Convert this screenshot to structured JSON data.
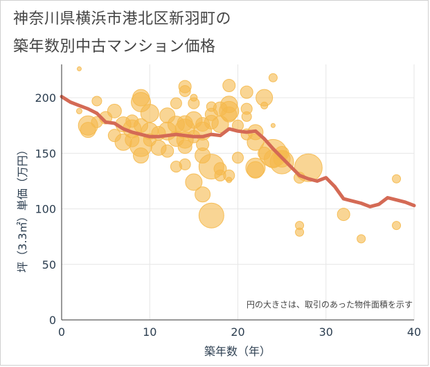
{
  "title": {
    "line1": "神奈川県横浜市港北区新羽町の",
    "line2": "築年数別中古マンション価格"
  },
  "colors": {
    "line": "#d46a55",
    "bubble": "#f5b94d",
    "axis_text": "#2c3e50",
    "grid": "#e6e6e6"
  },
  "chart_data": {
    "type": "scatter",
    "xlabel": "築年数（年）",
    "ylabel": "坪（3.3㎡）単価（万円）",
    "annotation": "円の大きさは、取引のあった物件面積を示す",
    "xlim": [
      0,
      40
    ],
    "ylim": [
      0,
      230
    ],
    "xticks": [
      "0",
      "10",
      "20",
      "30",
      "40"
    ],
    "yticks": [
      "0",
      "50",
      "100",
      "150",
      "200"
    ],
    "grid": true,
    "series": [
      {
        "type": "line",
        "points": [
          [
            0,
            201
          ],
          [
            1,
            196
          ],
          [
            2,
            193
          ],
          [
            3,
            190
          ],
          [
            4,
            186
          ],
          [
            5,
            178
          ],
          [
            6,
            177
          ],
          [
            7,
            172
          ],
          [
            8,
            169
          ],
          [
            9,
            167
          ],
          [
            10,
            165
          ],
          [
            11,
            165
          ],
          [
            12,
            166
          ],
          [
            13,
            167
          ],
          [
            14,
            166
          ],
          [
            15,
            165
          ],
          [
            16,
            165
          ],
          [
            17,
            167
          ],
          [
            18,
            166
          ],
          [
            19,
            172
          ],
          [
            20,
            170
          ],
          [
            21,
            169
          ],
          [
            22,
            170
          ],
          [
            23,
            163
          ],
          [
            24,
            154
          ],
          [
            25,
            146
          ],
          [
            26,
            138
          ],
          [
            27,
            130
          ],
          [
            28,
            127
          ],
          [
            29,
            125
          ],
          [
            30,
            128
          ],
          [
            31,
            120
          ],
          [
            32,
            109
          ],
          [
            33,
            107
          ],
          [
            34,
            105
          ],
          [
            35,
            102
          ],
          [
            36,
            104
          ],
          [
            37,
            110
          ],
          [
            38,
            108
          ],
          [
            39,
            106
          ],
          [
            40,
            103
          ]
        ]
      },
      {
        "type": "bubble",
        "points": [
          [
            2,
            226,
            3
          ],
          [
            2,
            188,
            4
          ],
          [
            3,
            175,
            14
          ],
          [
            3,
            171,
            11
          ],
          [
            4,
            197,
            7
          ],
          [
            4,
            178,
            8
          ],
          [
            5,
            182,
            9
          ],
          [
            6,
            188,
            10
          ],
          [
            6,
            166,
            9
          ],
          [
            7,
            176,
            11
          ],
          [
            7,
            160,
            12
          ],
          [
            8,
            179,
            9
          ],
          [
            8,
            172,
            13
          ],
          [
            8,
            162,
            10
          ],
          [
            9,
            200,
            12
          ],
          [
            9,
            196,
            14
          ],
          [
            9,
            175,
            10
          ],
          [
            9,
            157,
            16
          ],
          [
            9,
            148,
            11
          ],
          [
            10,
            186,
            13
          ],
          [
            10,
            170,
            12
          ],
          [
            10,
            162,
            9
          ],
          [
            11,
            155,
            11
          ],
          [
            11,
            168,
            10
          ],
          [
            12,
            184,
            11
          ],
          [
            12,
            170,
            13
          ],
          [
            12,
            152,
            9
          ],
          [
            13,
            195,
            8
          ],
          [
            13,
            176,
            12
          ],
          [
            13,
            163,
            11
          ],
          [
            13,
            138,
            8
          ],
          [
            14,
            210,
            9
          ],
          [
            14,
            206,
            8
          ],
          [
            14,
            177,
            11
          ],
          [
            14,
            172,
            14
          ],
          [
            14,
            162,
            12
          ],
          [
            14,
            156,
            10
          ],
          [
            14,
            140,
            8
          ],
          [
            15,
            200,
            5
          ],
          [
            15,
            195,
            8
          ],
          [
            15,
            180,
            12
          ],
          [
            15,
            165,
            9
          ],
          [
            15,
            124,
            12
          ],
          [
            16,
            176,
            10
          ],
          [
            16,
            170,
            13
          ],
          [
            16,
            158,
            9
          ],
          [
            16,
            148,
            11
          ],
          [
            16,
            113,
            11
          ],
          [
            17,
            192,
            7
          ],
          [
            17,
            185,
            9
          ],
          [
            17,
            178,
            10
          ],
          [
            17,
            138,
            18
          ],
          [
            17,
            94,
            18
          ],
          [
            18,
            190,
            10
          ],
          [
            18,
            176,
            12
          ],
          [
            18,
            136,
            9
          ],
          [
            18,
            130,
            8
          ],
          [
            19,
            211,
            9
          ],
          [
            19,
            194,
            12
          ],
          [
            19,
            188,
            14
          ],
          [
            19,
            185,
            11
          ],
          [
            19,
            130,
            8
          ],
          [
            19,
            126,
            4
          ],
          [
            20,
            175,
            8
          ],
          [
            20,
            146,
            8
          ],
          [
            21,
            205,
            9
          ],
          [
            21,
            190,
            8
          ],
          [
            21,
            183,
            7
          ],
          [
            21,
            167,
            8
          ],
          [
            22,
            169,
            11
          ],
          [
            22,
            160,
            12
          ],
          [
            22,
            137,
            14
          ],
          [
            22,
            135,
            12
          ],
          [
            23,
            200,
            12
          ],
          [
            23,
            193,
            5
          ],
          [
            23,
            150,
            9
          ],
          [
            24,
            218,
            6
          ],
          [
            24,
            175,
            3
          ],
          [
            24,
            150,
            20
          ],
          [
            24,
            145,
            13
          ],
          [
            25,
            150,
            10
          ],
          [
            25,
            145,
            12
          ],
          [
            25,
            142,
            17
          ],
          [
            27,
            85,
            6
          ],
          [
            27,
            79,
            6
          ],
          [
            27,
            128,
            8
          ],
          [
            28,
            137,
            20
          ],
          [
            32,
            95,
            9
          ],
          [
            34,
            73,
            6
          ],
          [
            38,
            127,
            6
          ],
          [
            38,
            85,
            6
          ]
        ]
      }
    ]
  }
}
